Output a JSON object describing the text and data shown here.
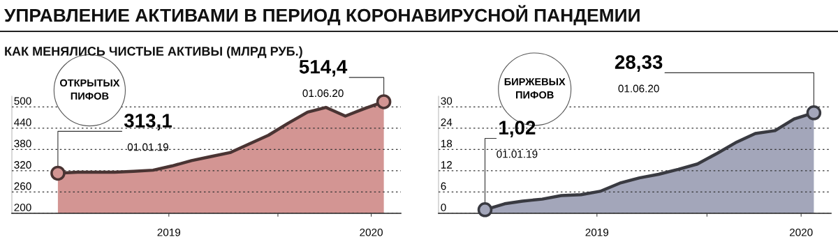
{
  "chart_data": [
    {
      "type": "area",
      "title": "УПРАВЛЕНИЕ АКТИВАМИ В ПЕРИОД КОРОНАВИРУСНОЙ ПАНДЕМИИ",
      "subtitle": "КАК МЕНЯЛИСЬ ЧИСТЫЕ АКТИВЫ (МЛРД РУБ.)",
      "x": [
        "2019-01",
        "2019-02",
        "2019-03",
        "2019-04",
        "2019-05",
        "2019-06",
        "2019-07",
        "2019-08",
        "2019-09",
        "2019-10",
        "2019-11",
        "2019-12",
        "2020-01",
        "2020-02",
        "2020-03",
        "2020-04",
        "2020-05",
        "2020-06"
      ],
      "series": [
        {
          "name": "ОТКРЫТЫХ ПИФОВ",
          "color": "#d39593",
          "values": [
            313.1,
            316,
            316,
            316,
            318.5,
            321.5,
            333.5,
            348.5,
            360,
            371,
            396,
            420,
            453.5,
            485,
            498.5,
            474,
            495,
            514.4
          ]
        }
      ],
      "ylim": [
        200,
        530
      ],
      "yticks": [
        200,
        260,
        320,
        380,
        440,
        500
      ],
      "xlim": [
        "2018-10-20",
        "2020-06-28"
      ],
      "xticks": [
        {
          "value": "2019-06-26",
          "label": "2019"
        },
        {
          "value": "2019-12-16",
          "label": null
        },
        {
          "value": "2020-05-12",
          "label": "2020"
        }
      ],
      "grid": "y",
      "line_style": "solid",
      "annotations": [
        {
          "text": "313,1",
          "x": "2019-01",
          "y": 313.1
        },
        "01.01.19",
        {
          "text": "514,4",
          "x": "2020-06",
          "y": 514.4
        },
        "01.06.20"
      ]
    },
    {
      "type": "area",
      "x": [
        "2019-01",
        "2019-02",
        "2019-03",
        "2019-04",
        "2019-05",
        "2019-06",
        "2019-07",
        "2019-08",
        "2019-09",
        "2019-10",
        "2019-11",
        "2019-12",
        "2020-01",
        "2020-02",
        "2020-03",
        "2020-04",
        "2020-05",
        "2020-06"
      ],
      "series": [
        {
          "name": "БИРЖЕВЫХ ПИФОВ",
          "color": "#a3a6ba",
          "values": [
            1.02,
            2.7,
            3.45,
            4.0,
            5.0,
            5.25,
            6.2,
            8.5,
            10.0,
            11.0,
            12.4,
            13.9,
            16.9,
            20.1,
            22.5,
            23.3,
            26.6,
            28.33
          ]
        }
      ],
      "ylim": [
        0,
        33
      ],
      "yticks": [
        0,
        6,
        12,
        18,
        24,
        30
      ],
      "xlim": [
        "2018-10-20",
        "2020-06-28"
      ],
      "xticks": [
        {
          "value": "2019-06-26",
          "label": "2019"
        },
        {
          "value": "2019-12-16",
          "label": null
        },
        {
          "value": "2020-05-12",
          "label": "2020"
        }
      ],
      "grid": "y",
      "line_style": "solid",
      "annotations": [
        {
          "text": "1,02",
          "x": "2019-01",
          "y": 1.02
        },
        "01.01.19",
        {
          "text": "28,33",
          "x": "2020-06",
          "y": 28.33
        },
        "01.06.20"
      ]
    }
  ]
}
